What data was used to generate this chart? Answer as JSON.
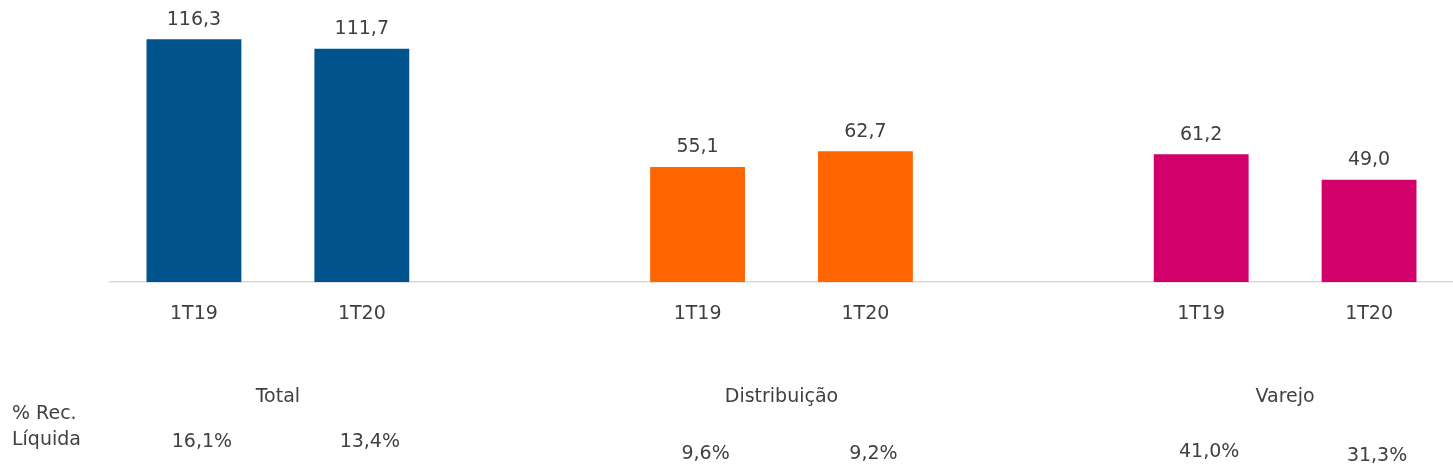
{
  "chart_data": {
    "type": "bar",
    "categories": [
      "1T19",
      "1T20",
      null,
      "1T19",
      "1T20",
      null,
      "1T19",
      "1T20"
    ],
    "values": [
      116.3,
      111.7,
      null,
      55.1,
      62.7,
      null,
      61.2,
      49.0
    ],
    "colors": [
      "#00538d",
      "#00538d",
      null,
      "#ff6600",
      "#ff6600",
      null,
      "#d1006b",
      "#d1006b"
    ],
    "value_labels": [
      "116,3",
      "111,7",
      null,
      "55,1",
      "62,7",
      null,
      "61,2",
      "49,0"
    ],
    "annotations": [
      "Total",
      "Distribuição",
      "Varejo",
      "% Rec. Líquida",
      "16,1%",
      "13,4%",
      "9,6%",
      "9,2%",
      "41,0%",
      "31,3%"
    ],
    "grid": false,
    "legend": false
  }
}
